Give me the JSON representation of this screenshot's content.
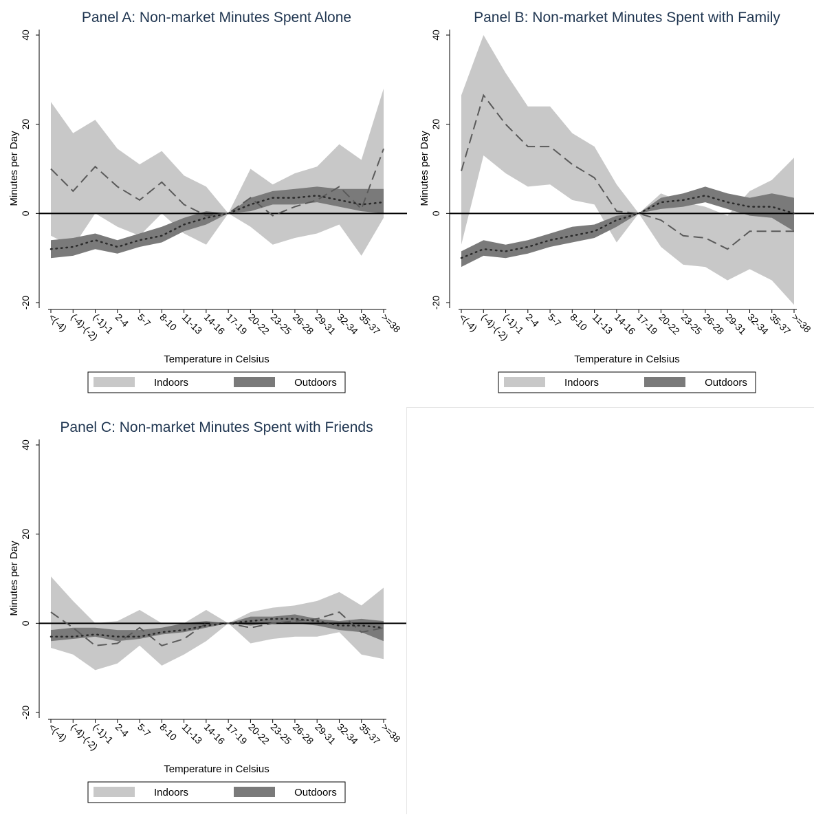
{
  "colors": {
    "indoors_band": "#c8c8c8",
    "outdoors_band": "#7a7a7a",
    "indoors_line": "#5a5a5a",
    "outdoors_line": "#2a2a2a",
    "title": "#1f3550",
    "zero_line": "#000000"
  },
  "chart_data": [
    {
      "type": "area",
      "title": "Panel A: Non-market Minutes Spent Alone",
      "xlabel": "Temperature in Celsius",
      "ylabel": "Minutes per Day",
      "ylim": [
        -20,
        40
      ],
      "yticks": [
        "-20",
        "0",
        "20",
        "40"
      ],
      "categories": [
        "<(-4)",
        "(-4)-(-2)",
        "(-1)-1",
        "2-4",
        "5-7",
        "8-10",
        "11-13",
        "14-16",
        "17-19",
        "20-22",
        "23-25",
        "26-28",
        "29-31",
        "32-34",
        "35-37",
        ">=38"
      ],
      "legend": [
        "Indoors",
        "Outdoors"
      ],
      "grid": false,
      "series": [
        {
          "name": "Indoors",
          "style": "dashed",
          "values": [
            10,
            5,
            10.5,
            6,
            3,
            7,
            2,
            -0.5,
            0,
            3.5,
            -0.5,
            1.5,
            3,
            6,
            1,
            14.5
          ],
          "upper": [
            25,
            18,
            21,
            14.5,
            11,
            14,
            8.5,
            6,
            0,
            10,
            6.5,
            9,
            10.5,
            15.5,
            12,
            28
          ],
          "lower": [
            -5,
            -7.5,
            0,
            -3,
            -5,
            0,
            -4.5,
            -7,
            0,
            -3,
            -7,
            -5.5,
            -4.5,
            -2.5,
            -9.5,
            -1
          ]
        },
        {
          "name": "Outdoors",
          "style": "dotted",
          "values": [
            -8,
            -7.5,
            -6,
            -7.5,
            -6,
            -5,
            -2.5,
            -1,
            0,
            2,
            3.5,
            3.5,
            4,
            3,
            2,
            2.5
          ],
          "upper": [
            -6,
            -5.5,
            -4.5,
            -6,
            -4.5,
            -3,
            -1,
            0.5,
            0,
            3.5,
            5,
            5.5,
            6,
            5.5,
            5.5,
            5.5
          ],
          "lower": [
            -10,
            -9.5,
            -8,
            -9,
            -7.5,
            -6.5,
            -4,
            -2.5,
            0,
            0.5,
            2,
            2,
            2.5,
            1.5,
            0.5,
            0
          ]
        }
      ]
    },
    {
      "type": "area",
      "title": "Panel B: Non-market Minutes Spent with Family",
      "xlabel": "Temperature in Celsius",
      "ylabel": "Minutes per Day",
      "ylim": [
        -20,
        40
      ],
      "yticks": [
        "-20",
        "0",
        "20",
        "40"
      ],
      "categories": [
        "<(-4)",
        "(-4)-(-2)",
        "(-1)-1",
        "2-4",
        "5-7",
        "8-10",
        "11-13",
        "14-16",
        "17-19",
        "20-22",
        "23-25",
        "26-28",
        "29-31",
        "32-34",
        "35-37",
        ">=38"
      ],
      "legend": [
        "Indoors",
        "Outdoors"
      ],
      "grid": false,
      "series": [
        {
          "name": "Indoors",
          "style": "dashed",
          "values": [
            9.5,
            26.5,
            20,
            15,
            15,
            11,
            8,
            0.5,
            0,
            -1.5,
            -5,
            -5.5,
            -8,
            -4,
            -4,
            -4
          ],
          "upper": [
            26.5,
            40,
            31.5,
            24,
            24,
            18,
            15,
            6.5,
            0,
            4.5,
            2.5,
            1.5,
            -0.5,
            5,
            7.5,
            12.5
          ],
          "lower": [
            -7,
            13,
            9,
            6,
            6.5,
            3,
            2,
            -6.5,
            0,
            -7.5,
            -11.5,
            -12,
            -15,
            -12.5,
            -15,
            -20.5
          ]
        },
        {
          "name": "Outdoors",
          "style": "dotted",
          "values": [
            -10,
            -8,
            -8.5,
            -7.5,
            -6,
            -5,
            -4,
            -1.5,
            0,
            2.5,
            3,
            4,
            2.5,
            1.5,
            1.5,
            0
          ],
          "upper": [
            -8.5,
            -6,
            -7,
            -6,
            -4.5,
            -3,
            -2.5,
            -0.5,
            0,
            3.5,
            4.5,
            6,
            4.5,
            3.5,
            4.5,
            3.5
          ],
          "lower": [
            -12,
            -9.5,
            -10,
            -9,
            -7.5,
            -6.5,
            -5.5,
            -3,
            0,
            1,
            1.5,
            2.5,
            1,
            -0.5,
            -1,
            -4
          ]
        }
      ]
    },
    {
      "type": "area",
      "title": "Panel C: Non-market Minutes Spent with Friends",
      "xlabel": "Temperature in Celsius",
      "ylabel": "Minutes per Day",
      "ylim": [
        -20,
        40
      ],
      "yticks": [
        "-20",
        "0",
        "20",
        "40"
      ],
      "categories": [
        "<(-4)",
        "(-4)-(-2)",
        "(-1)-1",
        "2-4",
        "5-7",
        "8-10",
        "11-13",
        "14-16",
        "17-19",
        "20-22",
        "23-25",
        "26-28",
        "29-31",
        "32-34",
        "35-37",
        ">=38"
      ],
      "legend": [
        "Indoors",
        "Outdoors"
      ],
      "grid": false,
      "series": [
        {
          "name": "Indoors",
          "style": "dashed",
          "values": [
            2.5,
            -1,
            -5,
            -4.5,
            -1,
            -5,
            -3.5,
            0,
            0,
            -1,
            0,
            0.5,
            1,
            2.5,
            -2,
            -1
          ],
          "upper": [
            10.5,
            5,
            0,
            0.5,
            3,
            0,
            0,
            3,
            0,
            2.5,
            3.5,
            4,
            5,
            7,
            4,
            8
          ],
          "lower": [
            -5.5,
            -7,
            -10.5,
            -9,
            -5,
            -9.5,
            -7,
            -4,
            0,
            -4.5,
            -3.5,
            -3,
            -3,
            -2,
            -7,
            -8
          ]
        },
        {
          "name": "Outdoors",
          "style": "dotted",
          "values": [
            -3,
            -3,
            -2.5,
            -3,
            -3,
            -2,
            -1.5,
            -0.5,
            0,
            0.5,
            1,
            1,
            0.5,
            -0.5,
            -0.5,
            -1
          ],
          "upper": [
            -1.5,
            -1,
            -1,
            -1.5,
            -1.5,
            -1,
            0,
            0.5,
            0,
            1.5,
            1.5,
            2,
            1,
            0.5,
            1,
            0.5
          ],
          "lower": [
            -4,
            -3.5,
            -3,
            -4,
            -3.5,
            -2.5,
            -2,
            -1,
            0,
            -0.5,
            0,
            0,
            -0.5,
            -1.5,
            -2,
            -4
          ]
        }
      ]
    }
  ]
}
